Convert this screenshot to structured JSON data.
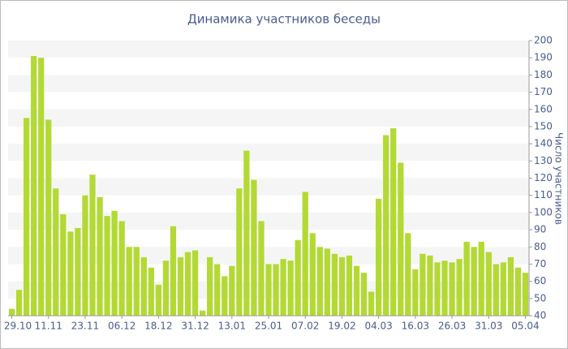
{
  "chart_data": {
    "type": "bar",
    "title": "Динамика участников беседы",
    "y_axis_label": "Число участников",
    "categories": [
      "29.10",
      null,
      null,
      null,
      null,
      "11.11",
      null,
      null,
      null,
      null,
      "23.11",
      null,
      null,
      null,
      null,
      "06.12",
      null,
      null,
      null,
      null,
      "18.12",
      null,
      null,
      null,
      null,
      "31.12",
      null,
      null,
      null,
      null,
      "13.01",
      null,
      null,
      null,
      null,
      "25.01",
      null,
      null,
      null,
      null,
      "07.02",
      null,
      null,
      null,
      null,
      "19.02",
      null,
      null,
      null,
      null,
      "04.03",
      null,
      null,
      null,
      null,
      "16.03",
      null,
      null,
      null,
      null,
      "26.03",
      null,
      null,
      null,
      null,
      "31.03",
      null,
      null,
      null,
      null,
      "05.04"
    ],
    "values": [
      44,
      55,
      155,
      191,
      190,
      154,
      114,
      99,
      89,
      91,
      110,
      122,
      109,
      98,
      101,
      95,
      80,
      80,
      74,
      68,
      58,
      72,
      92,
      74,
      77,
      78,
      43,
      74,
      70,
      63,
      69,
      114,
      136,
      119,
      95,
      70,
      70,
      73,
      72,
      84,
      112,
      88,
      80,
      79,
      76,
      74,
      75,
      69,
      65,
      54,
      108,
      145,
      149,
      129,
      88,
      67,
      76,
      75,
      71,
      72,
      71,
      73,
      83,
      80,
      83,
      77,
      70,
      71,
      74,
      68,
      65
    ],
    "color": "#b3d934",
    "ylim": [
      40,
      200
    ],
    "yticks": [
      40,
      50,
      60,
      70,
      80,
      90,
      100,
      110,
      120,
      130,
      140,
      150,
      160,
      170,
      180,
      190,
      200
    ],
    "grid": true
  }
}
